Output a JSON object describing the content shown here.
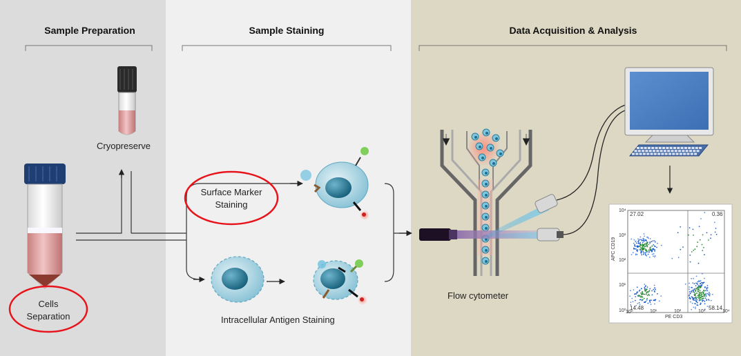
{
  "sections": {
    "preparation": "Sample Preparation",
    "staining": "Sample Staining",
    "acquisition": "Data Acquisition & Analysis"
  },
  "labels": {
    "cryopreserve": "Cryopreserve",
    "cells_line1": "Cells",
    "cells_line2": "Separation",
    "surface_line1": "Surface Marker",
    "surface_line2": "Staining",
    "intracellular": "Intracellular  Antigen Staining",
    "flow_cytometer": "Flow cytometer"
  },
  "plot": {
    "y_axis_label": "APC CD19",
    "x_axis_label": "PE CD3",
    "quadrants": {
      "upper_left": "27.02",
      "upper_right": "0.36",
      "lower_left": "14.48",
      "lower_right": "58.14"
    },
    "x_ticks": [
      "10⁰",
      "10¹",
      "10²",
      "10³",
      "10⁴"
    ],
    "y_ticks": [
      "10⁴",
      "10³",
      "10²",
      "10¹",
      "10⁰"
    ]
  },
  "colors": {
    "panel_preparation": "#dcdcdc",
    "panel_staining": "#f0f0f0",
    "panel_acquisition": "#ddd8c4",
    "highlight_circle": "#e8141c",
    "cell": "#3a8fae",
    "monitor_screen": "#4a7ec0",
    "dot_cluster": "#1f5fd0"
  }
}
